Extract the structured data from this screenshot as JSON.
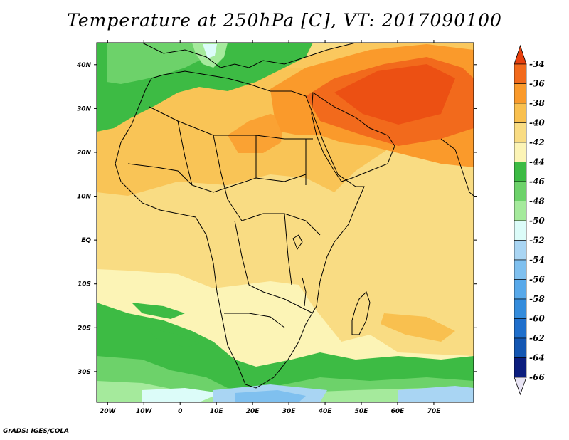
{
  "title": "Temperature at 250hPa [C], VT: 2017090100",
  "credit": "GrADS: IGES/COLA",
  "map": {
    "variable": "Temperature",
    "level": "250hPa",
    "units": "C",
    "valid_time": "2017090100",
    "lon_range": [
      -23,
      81
    ],
    "lat_range": [
      -37,
      45
    ],
    "lon_ticks": [
      "20W",
      "10W",
      "0",
      "10E",
      "20E",
      "30E",
      "40E",
      "50E",
      "60E",
      "70E"
    ],
    "lat_ticks": [
      "40N",
      "30N",
      "20N",
      "10N",
      "EQ",
      "10S",
      "20S",
      "30S"
    ]
  },
  "colorbar": {
    "labels": [
      "-34",
      "-36",
      "-38",
      "-40",
      "-42",
      "-44",
      "-46",
      "-48",
      "-50",
      "-52",
      "-54",
      "-56",
      "-58",
      "-60",
      "-62",
      "-64",
      "-66"
    ],
    "colors": [
      "#e8400e",
      "#f26a1c",
      "#fa9a2b",
      "#f9c04f",
      "#f9dc83",
      "#fcf4b6",
      "#3dbb44",
      "#6dd26a",
      "#a5ea9c",
      "#dcfcf9",
      "#a9d5f3",
      "#7fc0ef",
      "#58a9ea",
      "#348cdc",
      "#1f6fcc",
      "#1356b2",
      "#0b1d7e"
    ]
  }
}
